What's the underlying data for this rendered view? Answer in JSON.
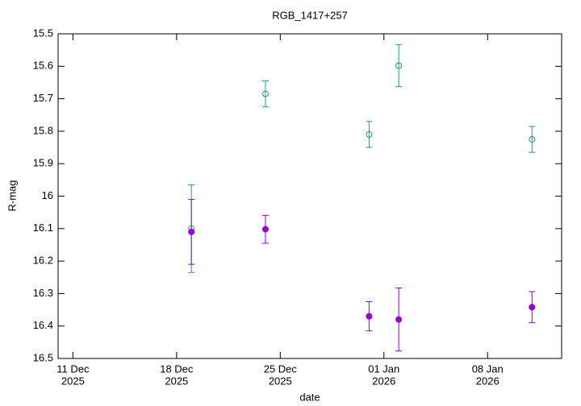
{
  "chart_data": {
    "type": "errorbar",
    "title": "RGB_1417+257",
    "x_label": "date",
    "y_label": "R-mag",
    "xlim": [
      "2025-12-10",
      "2026-01-13"
    ],
    "xticks": [
      {
        "value": "2025-12-11",
        "label": [
          "11 Dec",
          "2025"
        ]
      },
      {
        "value": "2025-12-18",
        "label": [
          "18 Dec",
          "2025"
        ]
      },
      {
        "value": "2025-12-25",
        "label": [
          "25 Dec",
          "2025"
        ]
      },
      {
        "value": "2026-01-01",
        "label": [
          "01 Jan",
          "2026"
        ]
      },
      {
        "value": "2026-01-08",
        "label": [
          "08 Jan",
          "2026"
        ]
      }
    ],
    "ylim": [
      15.5,
      16.5
    ],
    "y_reversed": true,
    "yticks": [
      15.5,
      15.6,
      15.7,
      15.8,
      15.9,
      16,
      16.1,
      16.2,
      16.3,
      16.4,
      16.5
    ],
    "series": [
      {
        "color": "#1a9e77",
        "marker": "open",
        "x": [
          "2025-12-19",
          "2025-12-24",
          "2025-12-31",
          "2026-01-02",
          "2026-01-11"
        ],
        "values": [
          16.1,
          15.685,
          15.81,
          15.598,
          15.825
        ],
        "errors": [
          0.135,
          0.04,
          0.04,
          0.065,
          0.04
        ]
      },
      {
        "color": "#9400d3",
        "marker": "filled",
        "x": [
          "2025-12-19",
          "2025-12-24",
          "2025-12-31",
          "2026-01-02",
          "2026-01-11"
        ],
        "values": [
          16.11,
          16.102,
          16.37,
          16.38,
          16.342
        ],
        "errors": [
          0.1,
          0.043,
          0.045,
          0.097,
          0.048
        ]
      }
    ]
  }
}
